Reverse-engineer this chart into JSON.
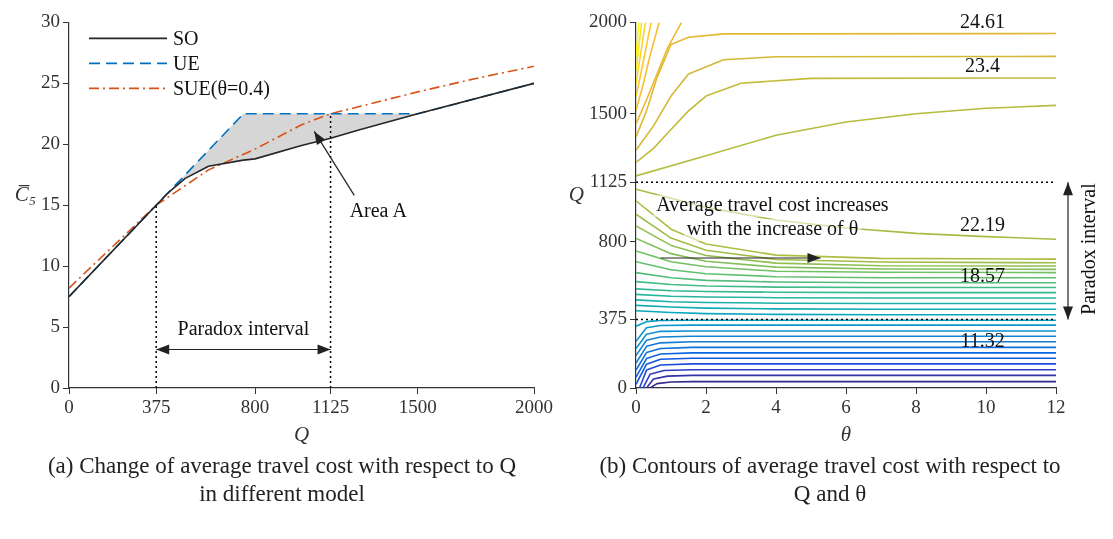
{
  "chart_data": [
    {
      "type": "line",
      "title": "(a) Change of average travel cost with respect to Q in different model",
      "xlabel": "Q",
      "ylabel": "C̅₅",
      "xlim": [
        0,
        2000
      ],
      "xticks": [
        0,
        375,
        800,
        1125,
        1500,
        2000
      ],
      "ylim": [
        0,
        30
      ],
      "yticks": [
        0,
        5,
        10,
        15,
        20,
        25,
        30
      ],
      "grid": false,
      "legend": "top left",
      "x": [
        0,
        375,
        420,
        450,
        500,
        600,
        750,
        800,
        1000,
        1125,
        1250,
        1500,
        2000
      ],
      "series": [
        {
          "name": "SO",
          "color": "#262626",
          "line_style": "solid",
          "values": [
            7.5,
            15,
            15.9,
            16.4,
            17.2,
            18.2,
            18.7,
            18.8,
            19.9,
            20.5,
            21.2,
            22.5,
            25
          ]
        },
        {
          "name": "UE",
          "color": "#0072bd",
          "line_style": "dashed",
          "values": [
            7.5,
            15,
            15.9,
            16.5,
            17.5,
            19.5,
            22.5,
            22.5,
            22.5,
            22.5,
            22.5,
            22.5,
            25
          ],
          "lower": [
            7.5,
            15,
            15.9,
            16.4,
            17.2,
            18.2,
            18.7,
            18.8,
            19.9,
            20.5,
            21.2,
            22.5,
            25
          ],
          "upper": [
            7.5,
            15,
            15.9,
            16.5,
            17.5,
            19.5,
            22.5,
            22.5,
            22.5,
            22.5,
            22.5,
            22.5,
            25
          ]
        },
        {
          "name": "SUE(θ=0.4)",
          "color": "#d95319",
          "line_style": "dashdot",
          "x": [
            0,
            375,
            600,
            800,
            1000,
            1125,
            1250,
            1500,
            1750,
            2000
          ],
          "values": [
            8.2,
            15,
            17.9,
            19.6,
            21.6,
            22.5,
            23.1,
            24.3,
            25.4,
            26.4
          ]
        }
      ],
      "ref_lines": [
        {
          "axis": "x",
          "value": 375,
          "line_style": "dotted",
          "color": "#000000"
        },
        {
          "axis": "x",
          "value": 1125,
          "line_style": "dotted",
          "color": "#000000"
        }
      ],
      "annotations": [
        "Area A",
        "Paradox interval"
      ]
    },
    {
      "type": "line",
      "title": "(b) Contours of average travel cost with respect to Q and θ",
      "xlabel": "θ",
      "ylabel": "Q",
      "xlim": [
        0,
        12
      ],
      "xticks": [
        0,
        2,
        4,
        6,
        8,
        10,
        12
      ],
      "ylim": [
        0,
        2000
      ],
      "yticks": [
        0,
        375,
        800,
        1125,
        1500,
        2000
      ],
      "grid": false,
      "legend": false,
      "series": [
        {
          "color": "#33298a",
          "x": [
            0.4,
            0.6,
            1,
            1.6,
            12
          ],
          "values": [
            0,
            24,
            33,
            35,
            35
          ]
        },
        {
          "color": "#3232a6",
          "x": [
            0.3,
            0.5,
            0.9,
            1.6,
            12
          ],
          "values": [
            0,
            49,
            65,
            69,
            69
          ]
        },
        {
          "color": "#2c3cc2",
          "x": [
            0.2,
            0.4,
            0.8,
            1.6,
            12
          ],
          "values": [
            0,
            75,
            96,
            100,
            100
          ]
        },
        {
          "color": "#2149d9",
          "x": [
            0.1,
            0.3,
            0.7,
            1.6,
            12
          ],
          "values": [
            0,
            98,
            126,
            132,
            132
          ]
        },
        {
          "color": "#1257e0",
          "x": [
            0,
            0.3,
            0.7,
            1.6,
            12
          ],
          "values": [
            20,
            130,
            157,
            163,
            163
          ]
        },
        {
          "color": "#0d64e0",
          "x": [
            0,
            0.3,
            0.7,
            1.6,
            12
          ],
          "values": [
            59,
            161,
            186,
            192,
            192
          ]
        },
        {
          "color": "#0f70dc",
          "x": [
            0,
            0.3,
            0.7,
            1.6,
            12
          ],
          "values": [
            98,
            194,
            216,
            222,
            222
          ]
        },
        {
          "color": "#127bd6",
          "x": [
            0,
            0.3,
            0.7,
            1.6,
            12
          ],
          "values": [
            137,
            228,
            247,
            253,
            253
          ]
        },
        {
          "color": "#1185d3",
          "x": [
            0,
            0.3,
            0.7,
            1.6,
            12
          ],
          "values": [
            177,
            261,
            279,
            283,
            283
          ]
        },
        {
          "color": "#0d8fd0",
          "x": [
            0,
            0.3,
            0.7,
            1.6,
            12
          ],
          "values": [
            216,
            294,
            310,
            312,
            312
          ]
        },
        {
          "color": "#0898cd",
          "x": [
            0,
            0.3,
            0.7,
            1.6,
            12
          ],
          "values": [
            255,
            330,
            342,
            344,
            344
          ]
        },
        {
          "color": "#07a0c6",
          "x": [
            0,
            0.3,
            0.7,
            1.6,
            12
          ],
          "values": [
            338,
            363,
            369,
            371,
            371
          ]
        },
        {
          "color": "#0aa6bd",
          "x": [
            0,
            1,
            2,
            4,
            7,
            12
          ],
          "values": [
            423,
            413,
            407,
            403,
            401,
            401
          ]
        },
        {
          "color": "#12abb3",
          "x": [
            0,
            1,
            2,
            4,
            7,
            12
          ],
          "values": [
            452,
            443,
            437,
            433,
            431,
            431
          ]
        },
        {
          "color": "#1cb0a9",
          "x": [
            0,
            1,
            2,
            4,
            7,
            12
          ],
          "values": [
            482,
            472,
            468,
            464,
            462,
            462
          ]
        },
        {
          "color": "#27b59e",
          "x": [
            0,
            1,
            2,
            4,
            7,
            12
          ],
          "values": [
            512,
            502,
            498,
            494,
            492,
            492
          ]
        },
        {
          "color": "#34b893",
          "x": [
            0,
            1,
            2,
            4,
            7,
            12
          ],
          "values": [
            542,
            532,
            528,
            524,
            522,
            522
          ]
        },
        {
          "color": "#42bb87",
          "x": [
            0,
            1,
            2,
            4,
            7,
            12
          ],
          "values": [
            582,
            566,
            558,
            552,
            550,
            550
          ]
        },
        {
          "color": "#52bd7b",
          "x": [
            0,
            1,
            2,
            4,
            7,
            12
          ],
          "values": [
            631,
            603,
            589,
            580,
            576,
            576
          ]
        },
        {
          "color": "#62bf6f",
          "x": [
            0,
            1,
            2,
            4,
            7,
            12
          ],
          "values": [
            691,
            647,
            625,
            609,
            603,
            603
          ]
        },
        {
          "color": "#72bf64",
          "x": [
            0,
            1,
            2,
            4,
            7,
            12
          ],
          "values": [
            750,
            691,
            663,
            639,
            633,
            631
          ]
        },
        {
          "color": "#82bf5a",
          "x": [
            0,
            1,
            2,
            4,
            7,
            12
          ],
          "values": [
            818,
            735,
            693,
            661,
            651,
            649
          ]
        },
        {
          "color": "#91bf50",
          "x": [
            0,
            1,
            2,
            4,
            7,
            12
          ],
          "values": [
            887,
            780,
            725,
            683,
            669,
            667
          ]
        },
        {
          "color": "#9fbe47",
          "x": [
            0,
            1,
            2,
            4,
            7,
            12
          ],
          "values": [
            951,
            820,
            754,
            703,
            689,
            685
          ]
        },
        {
          "color": "#acbd3f",
          "x": [
            0,
            1,
            2,
            4,
            7,
            12
          ],
          "values": [
            1024,
            869,
            788,
            727,
            709,
            705
          ]
        },
        {
          "color": "#a4be45",
          "x": [
            0,
            2,
            4,
            6,
            8,
            10,
            12
          ],
          "values": [
            1087,
            988,
            919,
            875,
            846,
            828,
            814
          ]
        },
        {
          "color": "#b4bd3f",
          "x": [
            0,
            2,
            4,
            6,
            8,
            10,
            12
          ],
          "values": [
            1160,
            1270,
            1383,
            1455,
            1500,
            1530,
            1546
          ]
        },
        {
          "color": "#c4bb3a",
          "x": [
            0,
            0.5,
            1,
            1.5,
            2,
            3,
            5,
            12
          ],
          "values": [
            1234,
            1311,
            1414,
            1516,
            1597,
            1667,
            1694,
            1696
          ]
        },
        {
          "color": "#d3b936",
          "x": [
            0,
            0.5,
            1,
            1.5,
            2.5,
            4,
            12
          ],
          "values": [
            1301,
            1434,
            1597,
            1718,
            1796,
            1812,
            1814
          ]
        },
        {
          "color": "#e2b832",
          "x": [
            0,
            0.3,
            0.6,
            1,
            1.5,
            2.5,
            12
          ],
          "values": [
            1373,
            1516,
            1698,
            1879,
            1919,
            1937,
            1939
          ]
        },
        {
          "color": "#efb92f",
          "x": [
            0,
            0.3,
            0.6,
            0.9,
            1.3
          ],
          "values": [
            1445,
            1577,
            1718,
            1859,
            2000
          ]
        },
        {
          "color": "#f8bd2a",
          "x": [
            0,
            0.2,
            0.4,
            0.66
          ],
          "values": [
            1518,
            1657,
            1818,
            2000
          ]
        },
        {
          "color": "#fcc82a",
          "x": [
            0,
            0.2,
            0.43
          ],
          "values": [
            1593,
            1778,
            2000
          ]
        },
        {
          "color": "#fad62a",
          "x": [
            0,
            0.27
          ],
          "values": [
            1665,
            2000
          ]
        },
        {
          "color": "#f6e426",
          "x": [
            0,
            0.16
          ],
          "values": [
            1738,
            2000
          ]
        },
        {
          "color": "#f9f215",
          "x": [
            0,
            0.08
          ],
          "values": [
            1810,
            2000
          ]
        }
      ],
      "ref_lines": [
        {
          "axis": "y",
          "value": 1125,
          "line_style": "dotted",
          "color": "#000000"
        },
        {
          "axis": "y",
          "value": 375,
          "line_style": "dotted",
          "color": "#000000"
        }
      ],
      "annotations": [
        "24.61",
        "23.4",
        "22.19",
        "18.57",
        "11.32",
        "Average travel cost increases with the increase of θ",
        "Paradox interval"
      ]
    }
  ]
}
